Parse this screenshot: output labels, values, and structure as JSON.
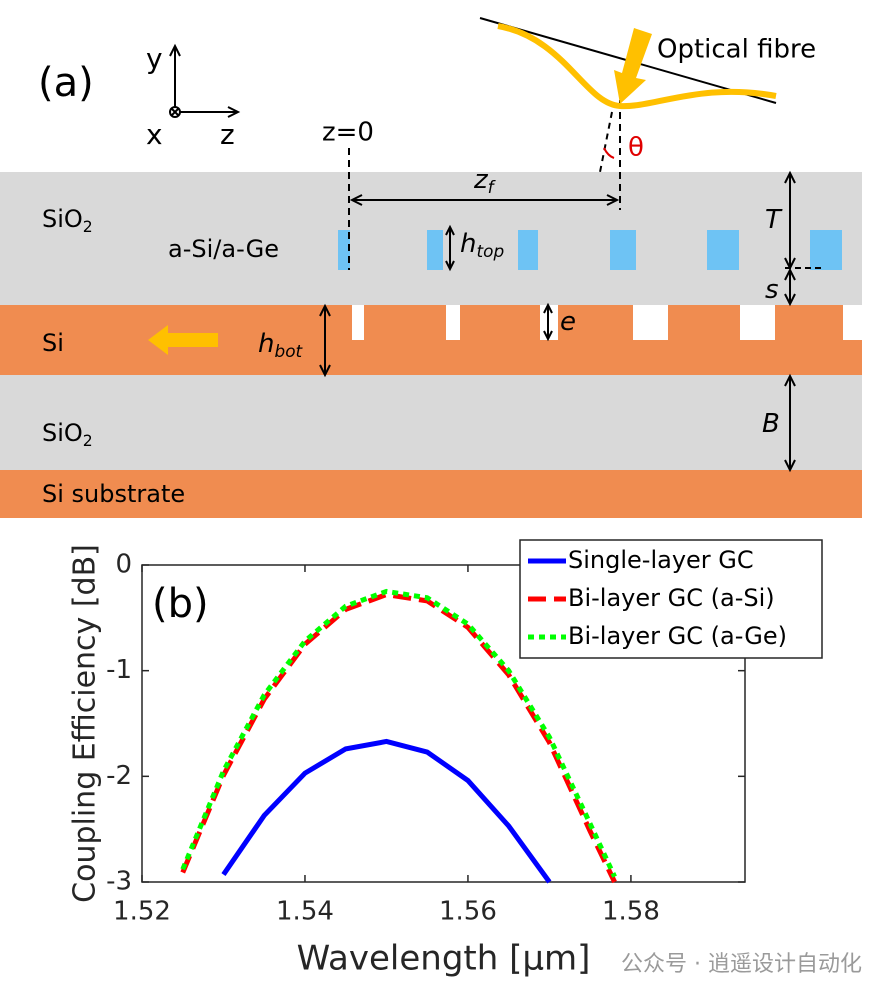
{
  "diagram": {
    "panel_label": "(a)",
    "axis_y": "y",
    "axis_x": "x",
    "axis_z": "z",
    "fibre": "Optical fibre",
    "angle": "θ",
    "z_origin": "z=0",
    "z_f": {
      "text": "z",
      "sub": "f"
    },
    "top_oxide": {
      "text": "SiO",
      "sub": "2"
    },
    "top_grating": {
      "text": "a-Si/a-Ge"
    },
    "h_top": {
      "text": "h",
      "sub": "top"
    },
    "waveguide": {
      "text": "Si"
    },
    "h_bot": {
      "text": "h",
      "sub": "bot"
    },
    "etch": {
      "text": "e"
    },
    "thickness_T": {
      "text": "T"
    },
    "spacing_s": {
      "text": "s"
    },
    "box_oxide": {
      "text": "SiO",
      "sub": "2"
    },
    "box_B": {
      "text": "B"
    },
    "substrate": {
      "text": "Si substrate"
    }
  },
  "chart_data": {
    "type": "line",
    "panel_label": "(b)",
    "x_label": "Wavelength [μm]",
    "y_label": "Coupling Efficiency [dB]",
    "x": [
      1.525,
      1.53,
      1.535,
      1.54,
      1.545,
      1.55,
      1.555,
      1.56,
      1.565,
      1.57,
      1.575,
      1.578
    ],
    "series": [
      {
        "name": "Single-layer GC",
        "color": "#0000ff",
        "style": "solid",
        "values": [
          null,
          -2.93,
          -2.37,
          -1.97,
          -1.74,
          -1.67,
          -1.77,
          -2.04,
          -2.47,
          -3.0,
          null,
          null
        ]
      },
      {
        "name": "Bi-layer GC (a-Si)",
        "color": "#ff0000",
        "style": "dashed",
        "values": [
          -2.91,
          -1.99,
          -1.27,
          -0.75,
          -0.42,
          -0.28,
          -0.34,
          -0.59,
          -1.04,
          -1.68,
          -2.52,
          -3.0
        ]
      },
      {
        "name": "Bi-layer GC (a-Ge)",
        "color": "#00ff00",
        "style": "dotted",
        "values": [
          -2.88,
          -1.95,
          -1.23,
          -0.72,
          -0.39,
          -0.25,
          -0.31,
          -0.56,
          -1.0,
          -1.63,
          -2.45,
          -2.95
        ]
      }
    ],
    "xlim": [
      1.52,
      1.594
    ],
    "ylim": [
      -3,
      0
    ],
    "xticks": [
      1.52,
      1.54,
      1.56,
      1.58
    ],
    "yticks": [
      -3,
      -2,
      -1,
      0
    ],
    "legend": "top-right"
  },
  "watermark": "公众号 · 逍遥设计自动化"
}
